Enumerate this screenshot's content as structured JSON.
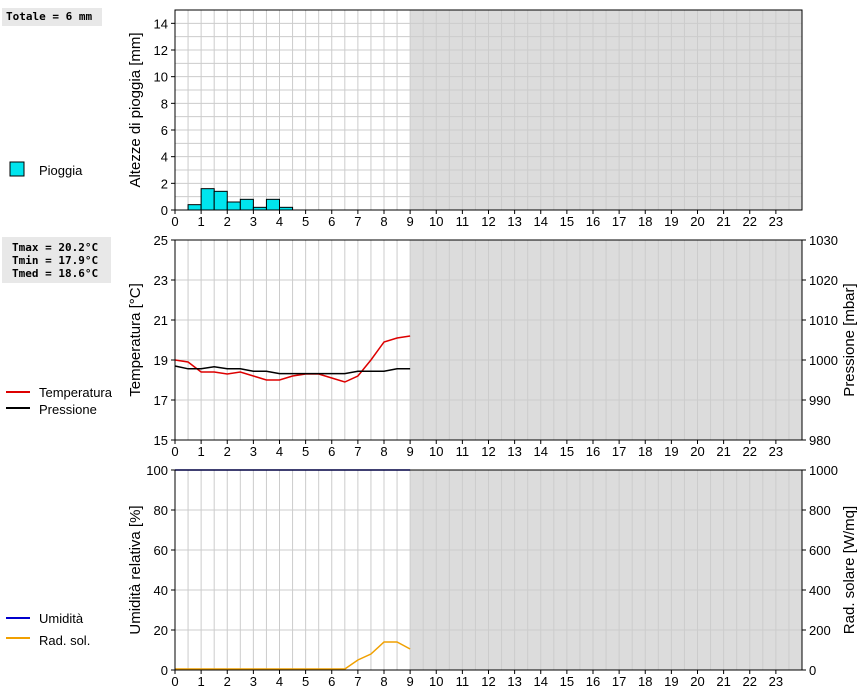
{
  "stats": {
    "total": "Totale = 6 mm",
    "tmax": "Tmax = 20.2°C",
    "tmin": "Tmin = 17.9°C",
    "tmed": "Tmed = 18.6°C"
  },
  "legend": {
    "rain": "Pioggia",
    "temperature": "Temperatura",
    "pressure": "Pressione",
    "humidity": "Umidità",
    "radiation": "Rad. sol."
  },
  "colors": {
    "rain_fill": "#00e5ee",
    "temperature": "#dd0000",
    "pressure": "#000000",
    "humidity": "#0000cc",
    "radiation": "#f0a000",
    "shade": "#dcdcdc",
    "grid": "#cccccc"
  },
  "chart_data": [
    {
      "type": "bar",
      "ylabel": "Altezze di pioggia [mm]",
      "ylim": [
        0,
        15
      ],
      "yticks": [
        0,
        2,
        4,
        6,
        8,
        10,
        12,
        14
      ],
      "xlim": [
        0,
        24
      ],
      "xticks": [
        0,
        1,
        2,
        3,
        4,
        5,
        6,
        7,
        8,
        9,
        10,
        11,
        12,
        13,
        14,
        15,
        16,
        17,
        18,
        19,
        20,
        21,
        22,
        23
      ],
      "shade_from": 9,
      "series": [
        {
          "name": "Pioggia",
          "x": [
            0.5,
            1.0,
            1.5,
            2.0,
            2.5,
            3.0,
            3.5,
            4.0
          ],
          "values": [
            0.4,
            1.6,
            1.4,
            0.6,
            0.8,
            0.2,
            0.8,
            0.2
          ],
          "width": 0.5
        }
      ]
    },
    {
      "type": "line",
      "ylabel": "Temperatura [°C]",
      "ylabel_right": "Pressione [mbar]",
      "ylim": [
        15,
        25
      ],
      "yticks": [
        15,
        17,
        19,
        21,
        23,
        25
      ],
      "ylim_right": [
        980,
        1030
      ],
      "yticks_right": [
        980,
        990,
        1000,
        1010,
        1020,
        1030
      ],
      "xlim": [
        0,
        24
      ],
      "xticks": [
        0,
        1,
        2,
        3,
        4,
        5,
        6,
        7,
        8,
        9,
        10,
        11,
        12,
        13,
        14,
        15,
        16,
        17,
        18,
        19,
        20,
        21,
        22,
        23
      ],
      "shade_from": 9,
      "series": [
        {
          "name": "Temperatura",
          "axis": "left",
          "x": [
            0,
            0.5,
            1,
            1.5,
            2,
            2.5,
            3,
            3.5,
            4,
            4.5,
            5,
            5.5,
            6,
            6.5,
            7,
            7.5,
            8,
            8.5,
            9
          ],
          "values": [
            19.0,
            18.9,
            18.4,
            18.4,
            18.3,
            18.4,
            18.2,
            18.0,
            18.0,
            18.2,
            18.3,
            18.3,
            18.1,
            17.9,
            18.2,
            19.0,
            19.9,
            20.1,
            20.2
          ]
        },
        {
          "name": "Pressione",
          "axis": "right",
          "x": [
            0,
            0.5,
            1,
            1.5,
            2,
            2.5,
            3,
            3.5,
            4,
            4.5,
            5,
            5.5,
            6,
            6.5,
            7,
            7.5,
            8,
            8.5,
            9
          ],
          "values": [
            998.5,
            997.8,
            997.8,
            998.3,
            997.8,
            997.8,
            997.2,
            997.2,
            996.6,
            996.6,
            996.6,
            996.6,
            996.6,
            996.6,
            997.2,
            997.2,
            997.2,
            997.8,
            997.8
          ]
        }
      ]
    },
    {
      "type": "line",
      "ylabel": "Umidità relativa [%]",
      "ylabel_right": "Rad. solare [W/mq]",
      "ylim": [
        0,
        100
      ],
      "yticks": [
        0,
        20,
        40,
        60,
        80,
        100
      ],
      "ylim_right": [
        0,
        1000
      ],
      "yticks_right": [
        0,
        200,
        400,
        600,
        800,
        1000
      ],
      "xlim": [
        0,
        24
      ],
      "xticks": [
        0,
        1,
        2,
        3,
        4,
        5,
        6,
        7,
        8,
        9,
        10,
        11,
        12,
        13,
        14,
        15,
        16,
        17,
        18,
        19,
        20,
        21,
        22,
        23
      ],
      "shade_from": 9,
      "series": [
        {
          "name": "Umidità",
          "axis": "left",
          "x": [
            0,
            9
          ],
          "values": [
            100,
            100
          ]
        },
        {
          "name": "Rad. sol.",
          "axis": "right",
          "x": [
            0,
            0.5,
            1,
            1.5,
            2,
            2.5,
            3,
            3.5,
            4,
            4.5,
            5,
            5.5,
            6,
            6.5,
            7,
            7.5,
            8,
            8.5,
            9
          ],
          "values": [
            5,
            5,
            5,
            5,
            5,
            5,
            5,
            5,
            5,
            5,
            5,
            5,
            5,
            5,
            50,
            80,
            140,
            140,
            105
          ]
        }
      ]
    }
  ]
}
